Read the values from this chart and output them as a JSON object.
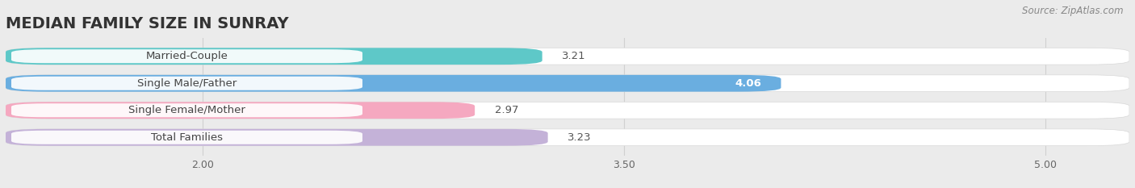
{
  "title": "MEDIAN FAMILY SIZE IN SUNRAY",
  "source": "Source: ZipAtlas.com",
  "categories": [
    "Married-Couple",
    "Single Male/Father",
    "Single Female/Mother",
    "Total Families"
  ],
  "values": [
    3.21,
    4.06,
    2.97,
    3.23
  ],
  "bar_colors": [
    "#5ec8c8",
    "#6aaee0",
    "#f5a8c0",
    "#c4b2d8"
  ],
  "value_colors": [
    "#555555",
    "#ffffff",
    "#555555",
    "#555555"
  ],
  "xlim_left": 1.3,
  "xlim_right": 5.3,
  "xticks": [
    2.0,
    3.5,
    5.0
  ],
  "xtick_labels": [
    "2.00",
    "3.50",
    "5.00"
  ],
  "bar_height": 0.62,
  "background_color": "#ebebeb",
  "track_color": "#ffffff",
  "grid_color": "#d0d0d0",
  "title_fontsize": 14,
  "label_fontsize": 9.5,
  "value_fontsize": 9.5,
  "bar_gap": 0.38
}
